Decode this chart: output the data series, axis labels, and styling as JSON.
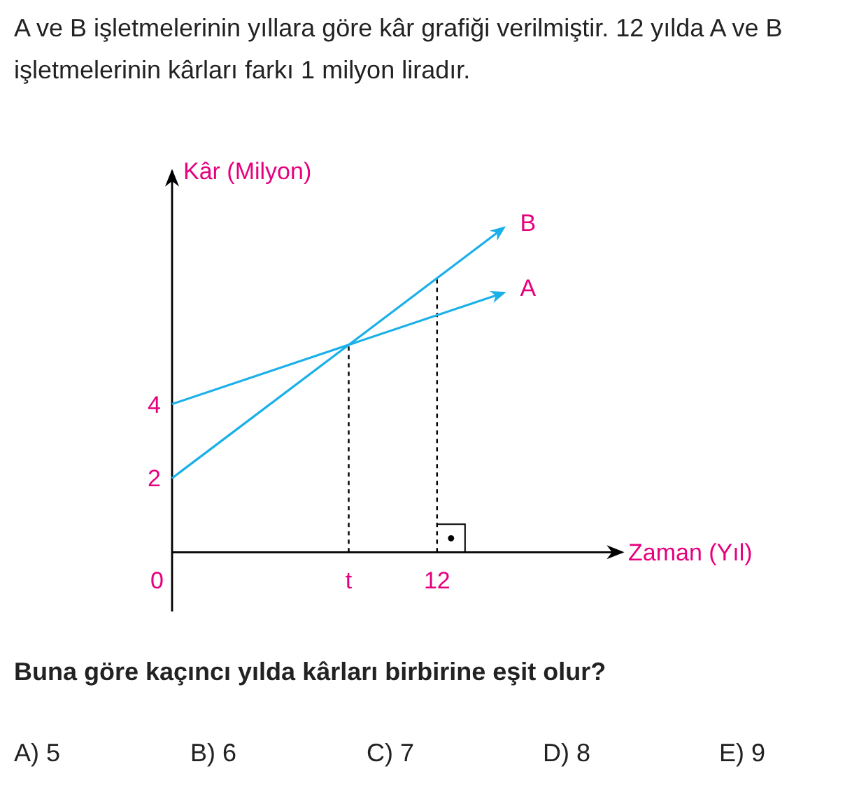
{
  "chart_data": {
    "type": "line",
    "title": "A ve B işletmelerinin yıllara göre kâr grafiği verilmiştir. 12 yılda A ve B işletmelerinin kârları farkı 1 milyon liradır.",
    "xlabel": "Zaman (Yıl)",
    "ylabel": "Kâr (Milyon)",
    "x": [
      0,
      15
    ],
    "series": [
      {
        "name": "A",
        "color": "#1ab0e8",
        "values": [
          4,
          7
        ]
      },
      {
        "name": "B",
        "color": "#1ab0e8",
        "values": [
          2,
          8.75
        ]
      }
    ],
    "xlim": [
      0,
      20.4
    ],
    "ylim": [
      -1.6,
      10.3
    ],
    "xticks": [
      0,
      {
        "value": 8,
        "label": "t"
      },
      12
    ],
    "yticks": [
      2,
      4
    ],
    "ref_lines": [
      {
        "axis": "x",
        "value": 8,
        "line_style": "dashed",
        "color": "#000000"
      },
      {
        "axis": "x",
        "value": 12,
        "line_style": "dashed",
        "color": "#000000"
      }
    ],
    "annotations": [
      "Buna göre kaçıncı yılda kârları birbirine eşit olur?",
      "A) 5",
      "B) 6",
      "C) 7",
      "D) 8",
      "E) 9"
    ],
    "grid": false,
    "marker": "none",
    "line_style": "solid"
  }
}
